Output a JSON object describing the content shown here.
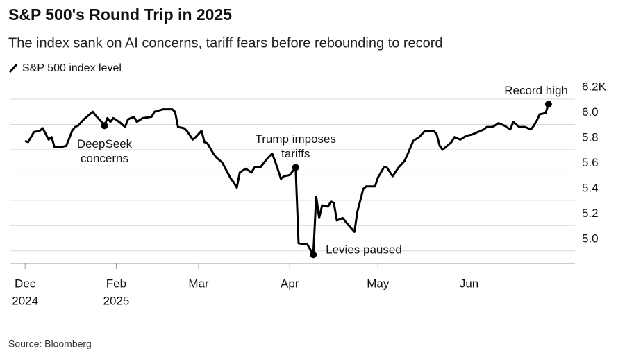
{
  "chart_data": {
    "type": "line",
    "title": "S&P 500's Round Trip in 2025",
    "subtitle": "The index sank on AI concerns, tariff fears before rebounding to record",
    "source": "Source: Bloomberg",
    "x": [
      0,
      1,
      3,
      5,
      6,
      8,
      9,
      10,
      12,
      14,
      16,
      17,
      18,
      20,
      23,
      24,
      26,
      27,
      28,
      29,
      30,
      32,
      34,
      35,
      37,
      38,
      40,
      43,
      44,
      47,
      50,
      51,
      52,
      54,
      55,
      57,
      58,
      60,
      61,
      62,
      64,
      65,
      67,
      70,
      71,
      72,
      73,
      75,
      77,
      78,
      80,
      82,
      84,
      85,
      87,
      88,
      90,
      92,
      93,
      96,
      97,
      98,
      99,
      100,
      101,
      103,
      104,
      105,
      106,
      108,
      109,
      112,
      113,
      115,
      116,
      119,
      120,
      122,
      123,
      125,
      127,
      129,
      130,
      132,
      134,
      136,
      139,
      140,
      141,
      142,
      145,
      146,
      148,
      150,
      152,
      154,
      156,
      157,
      159,
      161,
      163,
      165,
      166,
      168,
      170,
      172,
      173,
      174,
      175,
      177,
      178
    ],
    "series": [
      {
        "name": "S&P 500 index level",
        "color": "#000000",
        "values": [
          5.87,
          5.86,
          5.94,
          5.95,
          5.97,
          5.88,
          5.9,
          5.82,
          5.82,
          5.83,
          5.95,
          5.98,
          5.99,
          6.04,
          6.1,
          6.07,
          6.02,
          5.99,
          6.05,
          6.02,
          6.05,
          6.02,
          5.98,
          6.04,
          6.06,
          6.02,
          6.05,
          6.06,
          6.1,
          6.12,
          6.12,
          6.1,
          5.98,
          5.97,
          5.95,
          5.88,
          5.9,
          5.95,
          5.86,
          5.85,
          5.77,
          5.74,
          5.7,
          5.57,
          5.54,
          5.5,
          5.62,
          5.65,
          5.62,
          5.66,
          5.66,
          5.72,
          5.77,
          5.71,
          5.57,
          5.59,
          5.6,
          5.66,
          5.06,
          5.05,
          5.01,
          4.97,
          5.43,
          5.26,
          5.36,
          5.35,
          5.39,
          5.38,
          5.24,
          5.26,
          5.23,
          5.15,
          5.31,
          5.49,
          5.51,
          5.51,
          5.58,
          5.66,
          5.66,
          5.59,
          5.66,
          5.71,
          5.76,
          5.87,
          5.9,
          5.95,
          5.95,
          5.92,
          5.83,
          5.8,
          5.86,
          5.9,
          5.88,
          5.91,
          5.92,
          5.94,
          5.96,
          5.98,
          5.98,
          6.01,
          5.99,
          5.96,
          6.02,
          5.98,
          5.98,
          5.96,
          5.99,
          6.03,
          6.08,
          6.09,
          6.16
        ]
      }
    ],
    "annotations": [
      {
        "text": [
          "DeepSeek",
          "concerns"
        ],
        "x": 27
      },
      {
        "text": [
          "Trump imposes",
          "tariffs"
        ],
        "x": 92
      },
      {
        "text": [
          "Levies paused"
        ],
        "x": 98
      },
      {
        "text": [
          "Record high"
        ],
        "x": 178
      }
    ],
    "xlim": [
      -5,
      187
    ],
    "xticks": [
      {
        "value": 0,
        "label": [
          "Dec",
          "2024"
        ]
      },
      {
        "value": 31,
        "label": [
          "Feb",
          "2025"
        ]
      },
      {
        "value": 59,
        "label": [
          "Mar"
        ]
      },
      {
        "value": 90,
        "label": [
          "Apr"
        ]
      },
      {
        "value": 120,
        "label": [
          "May"
        ]
      },
      {
        "value": 151,
        "label": [
          "Jun"
        ]
      }
    ],
    "ylim": [
      4.9,
      6.2
    ],
    "yticks": [
      {
        "value": 5.0,
        "label": "5.0"
      },
      {
        "value": 5.2,
        "label": "5.2"
      },
      {
        "value": 5.4,
        "label": "5.4"
      },
      {
        "value": 5.6,
        "label": "5.6"
      },
      {
        "value": 5.8,
        "label": "5.8"
      },
      {
        "value": 6.0,
        "label": "6.0"
      },
      {
        "value": 6.2,
        "label": "6.2K"
      }
    ],
    "grid": true
  }
}
